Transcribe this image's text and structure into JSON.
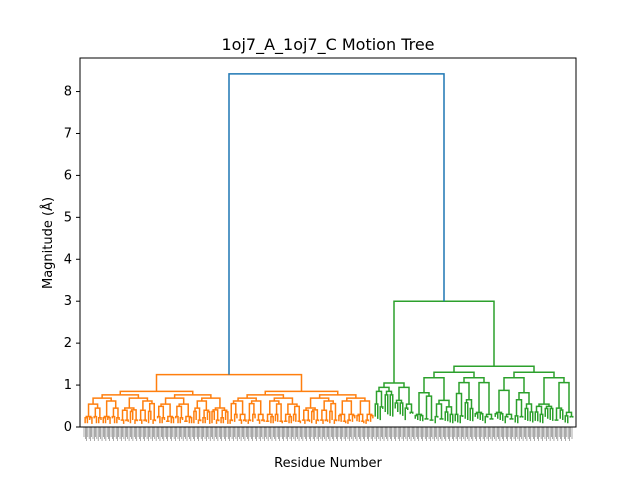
{
  "chart_data": {
    "type": "dendrogram",
    "title": "1oj7_A_1oj7_C Motion Tree",
    "xlabel": "Residue Number",
    "ylabel": "Magnitude (Å)",
    "ylim": [
      0,
      8.8
    ],
    "yticks": [
      0,
      1,
      2,
      3,
      4,
      5,
      6,
      7,
      8
    ],
    "grid": false,
    "legend": "none",
    "colors": {
      "root": "#1f77b4",
      "cluster_left": "#ff7f0e",
      "cluster_right": "#2ca02c"
    },
    "root_link": {
      "height": 8.42,
      "children": [
        "cluster_left",
        "cluster_right"
      ],
      "child_heights": [
        1.25,
        3.0
      ]
    },
    "clusters": [
      {
        "name": "cluster_left",
        "color": "#ff7f0e",
        "top_height": 1.25,
        "sub_heights": [
          0.85,
          0.85
        ],
        "secondary_heights": [
          0.45,
          0.4,
          0.68,
          0.3,
          0.3,
          0.55,
          0.25
        ]
      },
      {
        "name": "cluster_right",
        "color": "#2ca02c",
        "top_height": 3.0,
        "sub_heights": [
          1.05,
          1.45
        ],
        "secondary_heights": [
          1.0,
          1.05,
          0.8,
          0.65,
          0.55,
          0.48,
          0.45,
          0.35,
          0.3
        ]
      }
    ],
    "leaf_count": 380,
    "note_leaf_labels": "tick labels too small to read"
  }
}
